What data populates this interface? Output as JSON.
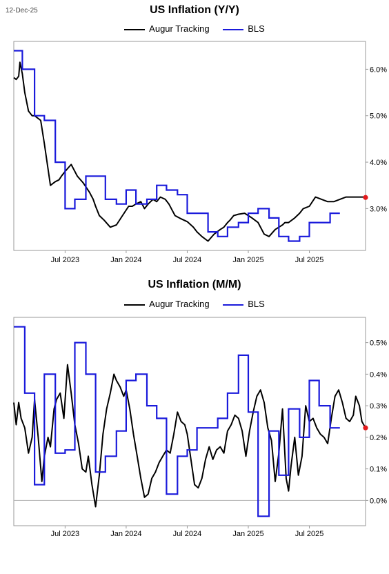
{
  "date_stamp": "12-Dec-25",
  "colors": {
    "tracking": "#000000",
    "bls": "#1a1adb",
    "marker": "#e31a1c",
    "frame": "#999999",
    "zero": "#b0b0b0"
  },
  "chart_data": [
    {
      "type": "line",
      "title": "US Inflation (Y/Y)",
      "legend": [
        "Augur Tracking",
        "BLS"
      ],
      "x_ticks": [
        "Jul 2023",
        "Jan 2024",
        "Jul 2024",
        "Jan 2025",
        "Jul 2025"
      ],
      "x_range": [
        2023.08,
        2025.96
      ],
      "ylim": [
        2.1,
        6.6
      ],
      "y_ticks": [
        {
          "value": 3.0,
          "label": "3.0%"
        },
        {
          "value": 4.0,
          "label": "4.0%"
        },
        {
          "value": 5.0,
          "label": "5.0%"
        },
        {
          "value": 6.0,
          "label": "6.0%"
        }
      ],
      "series": [
        {
          "name": "Augur Tracking",
          "style": "line",
          "x": [
            2023.08,
            2023.1,
            2023.12,
            2023.13,
            2023.15,
            2023.17,
            2023.2,
            2023.23,
            2023.25,
            2023.3,
            2023.33,
            2023.38,
            2023.42,
            2023.45,
            2023.47,
            2023.5,
            2023.55,
            2023.6,
            2023.65,
            2023.7,
            2023.73,
            2023.75,
            2023.78,
            2023.82,
            2023.87,
            2023.92,
            2023.97,
            2024.02,
            2024.05,
            2024.08,
            2024.12,
            2024.15,
            2024.18,
            2024.22,
            2024.25,
            2024.28,
            2024.32,
            2024.35,
            2024.38,
            2024.4,
            2024.45,
            2024.5,
            2024.55,
            2024.58,
            2024.62,
            2024.67,
            2024.72,
            2024.77,
            2024.8,
            2024.83,
            2024.85,
            2024.88,
            2024.92,
            2024.97,
            2025.0,
            2025.03,
            2025.08,
            2025.13,
            2025.17,
            2025.22,
            2025.28,
            2025.3,
            2025.33,
            2025.38,
            2025.42,
            2025.45,
            2025.5,
            2025.55,
            2025.6,
            2025.65,
            2025.7,
            2025.75,
            2025.8,
            2025.85,
            2025.88,
            2025.92,
            2025.94,
            2025.96
          ],
          "values": [
            5.82,
            5.78,
            5.85,
            6.15,
            5.9,
            5.5,
            5.1,
            5.0,
            5.0,
            4.9,
            4.4,
            3.5,
            3.58,
            3.62,
            3.7,
            3.8,
            3.95,
            3.7,
            3.55,
            3.35,
            3.2,
            3.05,
            2.85,
            2.75,
            2.6,
            2.65,
            2.85,
            3.05,
            3.05,
            3.1,
            3.15,
            3.0,
            3.1,
            3.2,
            3.15,
            3.25,
            3.2,
            3.1,
            2.95,
            2.85,
            2.78,
            2.72,
            2.6,
            2.5,
            2.4,
            2.3,
            2.45,
            2.55,
            2.6,
            2.7,
            2.75,
            2.85,
            2.88,
            2.9,
            2.85,
            2.8,
            2.7,
            2.45,
            2.4,
            2.55,
            2.65,
            2.7,
            2.7,
            2.8,
            2.9,
            3.0,
            3.05,
            3.25,
            3.2,
            3.15,
            3.15,
            3.2,
            3.25,
            3.25,
            3.25,
            3.25,
            3.25,
            3.24
          ]
        },
        {
          "name": "BLS",
          "style": "step",
          "x": [
            2023.08,
            2023.15,
            2023.25,
            2023.33,
            2023.42,
            2023.5,
            2023.58,
            2023.67,
            2023.75,
            2023.83,
            2023.92,
            2024.0,
            2024.08,
            2024.17,
            2024.25,
            2024.33,
            2024.42,
            2024.5,
            2024.58,
            2024.67,
            2024.75,
            2024.83,
            2024.92,
            2025.0,
            2025.08,
            2025.17,
            2025.25,
            2025.33,
            2025.42,
            2025.5,
            2025.58,
            2025.67
          ],
          "values": [
            6.4,
            6.0,
            5.0,
            4.9,
            4.0,
            3.0,
            3.2,
            3.7,
            3.7,
            3.2,
            3.1,
            3.4,
            3.1,
            3.2,
            3.5,
            3.4,
            3.3,
            2.9,
            2.9,
            2.5,
            2.4,
            2.6,
            2.7,
            2.9,
            3.0,
            2.8,
            2.4,
            2.3,
            2.4,
            2.7,
            2.7,
            2.9
          ],
          "end": 2025.75
        }
      ],
      "last_point": {
        "x": 2025.96,
        "value": 3.24
      }
    },
    {
      "type": "line",
      "title": "US Inflation (M/M)",
      "legend": [
        "Augur Tracking",
        "BLS"
      ],
      "x_ticks": [
        "Jul 2023",
        "Jan 2024",
        "Jul 2024",
        "Jan 2025",
        "Jul 2025"
      ],
      "x_range": [
        2023.08,
        2025.96
      ],
      "ylim": [
        -0.08,
        0.58
      ],
      "zero_line": true,
      "y_ticks": [
        {
          "value": 0.0,
          "label": "0.0%"
        },
        {
          "value": 0.1,
          "label": "0.1%"
        },
        {
          "value": 0.2,
          "label": "0.2%"
        },
        {
          "value": 0.3,
          "label": "0.3%"
        },
        {
          "value": 0.4,
          "label": "0.4%"
        },
        {
          "value": 0.5,
          "label": "0.5%"
        }
      ],
      "series": [
        {
          "name": "Augur Tracking",
          "style": "line",
          "x": [
            2023.08,
            2023.1,
            2023.12,
            2023.14,
            2023.17,
            2023.2,
            2023.23,
            2023.25,
            2023.28,
            2023.31,
            2023.33,
            2023.36,
            2023.38,
            2023.41,
            2023.43,
            2023.46,
            2023.49,
            2023.52,
            2023.55,
            2023.58,
            2023.61,
            2023.64,
            2023.67,
            2023.69,
            2023.72,
            2023.75,
            2023.78,
            2023.81,
            2023.84,
            2023.87,
            2023.9,
            2023.92,
            2023.95,
            2023.98,
            2024.0,
            2024.03,
            2024.06,
            2024.09,
            2024.12,
            2024.15,
            2024.18,
            2024.21,
            2024.24,
            2024.27,
            2024.3,
            2024.33,
            2024.36,
            2024.39,
            2024.42,
            2024.45,
            2024.48,
            2024.5,
            2024.53,
            2024.56,
            2024.59,
            2024.62,
            2024.65,
            2024.68,
            2024.71,
            2024.74,
            2024.77,
            2024.8,
            2024.83,
            2024.86,
            2024.89,
            2024.92,
            2024.95,
            2024.98,
            2025.01,
            2025.04,
            2025.07,
            2025.1,
            2025.13,
            2025.16,
            2025.19,
            2025.22,
            2025.25,
            2025.28,
            2025.31,
            2025.33,
            2025.35,
            2025.38,
            2025.41,
            2025.44,
            2025.47,
            2025.5,
            2025.53,
            2025.56,
            2025.59,
            2025.62,
            2025.65,
            2025.68,
            2025.71,
            2025.74,
            2025.77,
            2025.8,
            2025.83,
            2025.86,
            2025.88,
            2025.91,
            2025.93,
            2025.96
          ],
          "values": [
            0.31,
            0.24,
            0.31,
            0.26,
            0.23,
            0.15,
            0.2,
            0.32,
            0.2,
            0.06,
            0.14,
            0.2,
            0.17,
            0.29,
            0.32,
            0.34,
            0.26,
            0.43,
            0.34,
            0.24,
            0.18,
            0.1,
            0.09,
            0.14,
            0.05,
            -0.02,
            0.08,
            0.21,
            0.29,
            0.34,
            0.4,
            0.38,
            0.36,
            0.33,
            0.35,
            0.29,
            0.21,
            0.14,
            0.07,
            0.01,
            0.02,
            0.07,
            0.09,
            0.12,
            0.14,
            0.16,
            0.15,
            0.21,
            0.28,
            0.25,
            0.24,
            0.21,
            0.13,
            0.05,
            0.04,
            0.07,
            0.13,
            0.17,
            0.13,
            0.16,
            0.17,
            0.15,
            0.22,
            0.24,
            0.27,
            0.26,
            0.22,
            0.14,
            0.22,
            0.28,
            0.33,
            0.35,
            0.31,
            0.23,
            0.19,
            0.06,
            0.15,
            0.29,
            0.07,
            0.03,
            0.11,
            0.2,
            0.08,
            0.14,
            0.3,
            0.25,
            0.26,
            0.23,
            0.21,
            0.2,
            0.18,
            0.26,
            0.33,
            0.35,
            0.31,
            0.26,
            0.25,
            0.27,
            0.33,
            0.3,
            0.25,
            0.23
          ]
        },
        {
          "name": "BLS",
          "style": "step",
          "x": [
            2023.08,
            2023.17,
            2023.25,
            2023.33,
            2023.42,
            2023.5,
            2023.58,
            2023.67,
            2023.75,
            2023.83,
            2023.92,
            2024.0,
            2024.08,
            2024.17,
            2024.25,
            2024.33,
            2024.42,
            2024.5,
            2024.58,
            2024.67,
            2024.75,
            2024.83,
            2024.92,
            2025.0,
            2025.08,
            2025.17,
            2025.25,
            2025.33,
            2025.42,
            2025.5,
            2025.58,
            2025.67
          ],
          "values": [
            0.55,
            0.34,
            0.05,
            0.4,
            0.15,
            0.16,
            0.5,
            0.4,
            0.09,
            0.14,
            0.22,
            0.38,
            0.4,
            0.3,
            0.26,
            0.02,
            0.14,
            0.16,
            0.23,
            0.23,
            0.26,
            0.34,
            0.46,
            0.28,
            -0.05,
            0.22,
            0.08,
            0.29,
            0.2,
            0.38,
            0.3,
            0.23
          ],
          "end": 2025.75
        }
      ],
      "last_point": {
        "x": 2025.96,
        "value": 0.23
      }
    }
  ]
}
